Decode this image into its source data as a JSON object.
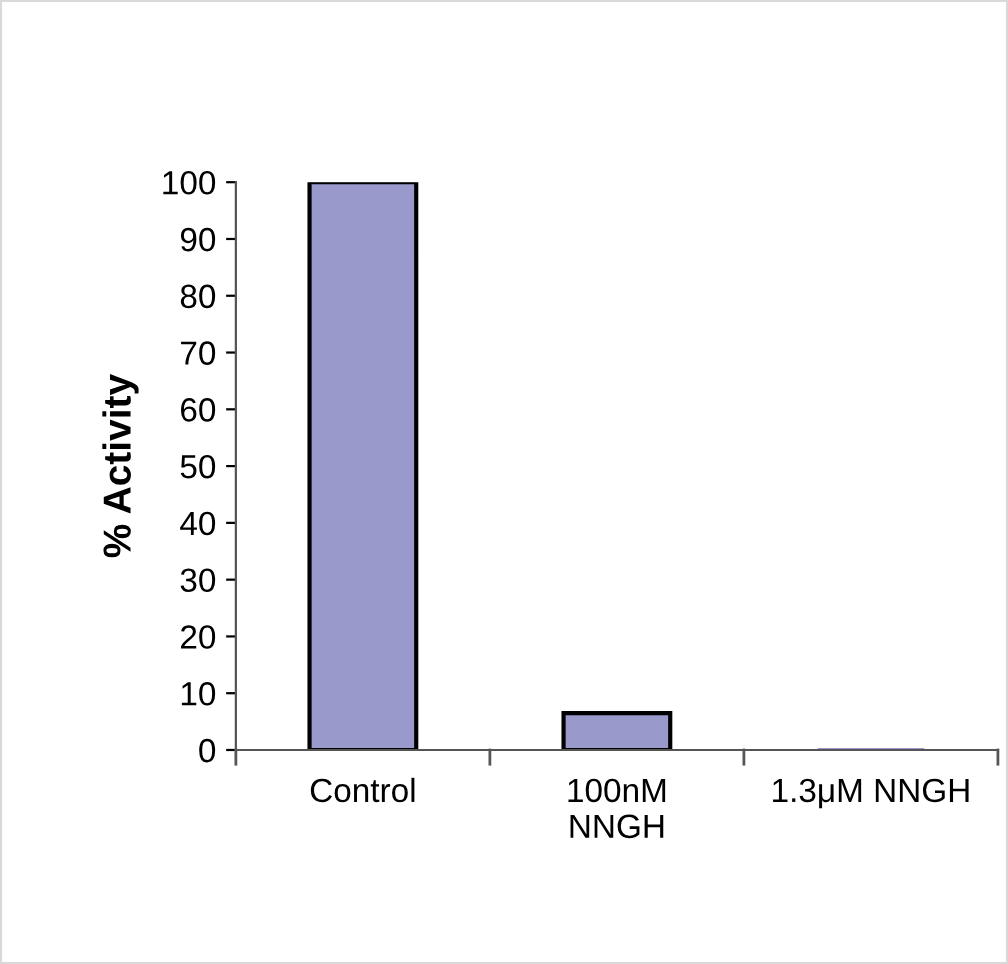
{
  "chart_data": {
    "type": "bar",
    "ylabel": "% Activity",
    "categories": [
      "Control",
      "100nM\nNNGH",
      "1.3μM NNGH"
    ],
    "values": [
      100,
      6.5,
      0
    ],
    "color": "#9999cc",
    "ylim": [
      0,
      100
    ],
    "yticks": [
      0,
      10,
      20,
      30,
      40,
      50,
      60,
      70,
      80,
      90,
      100
    ],
    "grid": false
  }
}
